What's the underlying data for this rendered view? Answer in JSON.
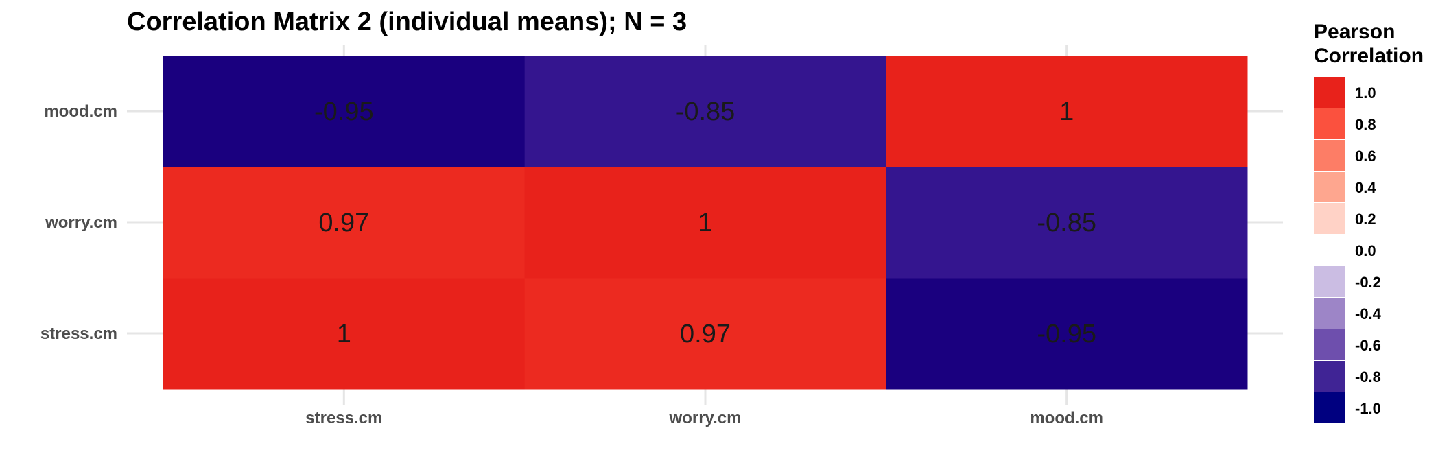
{
  "chart_data": {
    "type": "heatmap",
    "title": "Correlation Matrix 2 (individual means); N = 3",
    "x_categories": [
      "stress.cm",
      "worry.cm",
      "mood.cm"
    ],
    "y_categories": [
      "stress.cm",
      "worry.cm",
      "mood.cm"
    ],
    "values": [
      [
        1.0,
        0.97,
        -0.95
      ],
      [
        0.97,
        1.0,
        -0.85
      ],
      [
        -0.95,
        -0.85,
        1.0
      ]
    ],
    "value_labels": [
      [
        "1",
        "0.97",
        "-0.95"
      ],
      [
        "0.97",
        "1",
        "-0.85"
      ],
      [
        "-0.95",
        "-0.85",
        "1"
      ]
    ],
    "cell_colors": [
      [
        "#e8221b",
        "#ec2a20",
        "#1a007f"
      ],
      [
        "#ec2a20",
        "#e8221b",
        "#34158f"
      ],
      [
        "#1a007f",
        "#34158f",
        "#e8221b"
      ]
    ],
    "legend": {
      "title_lines": [
        "Pearson",
        "Correlation"
      ],
      "position": "right",
      "entries": [
        {
          "label": "1.0",
          "color": "#e8221b"
        },
        {
          "label": "0.8",
          "color": "#fb513e"
        },
        {
          "label": "0.6",
          "color": "#fd7d66"
        },
        {
          "label": "0.4",
          "color": "#fea68f"
        },
        {
          "label": "0.2",
          "color": "#ffd2c6"
        },
        {
          "label": "0.0",
          "color": "#ffffff"
        },
        {
          "label": "-0.2",
          "color": "#cbbde3"
        },
        {
          "label": "-0.4",
          "color": "#9d85c7"
        },
        {
          "label": "-0.6",
          "color": "#6e4fad"
        },
        {
          "label": "-0.8",
          "color": "#402495"
        },
        {
          "label": "-1.0",
          "color": "#000080"
        }
      ]
    },
    "grid": true
  }
}
